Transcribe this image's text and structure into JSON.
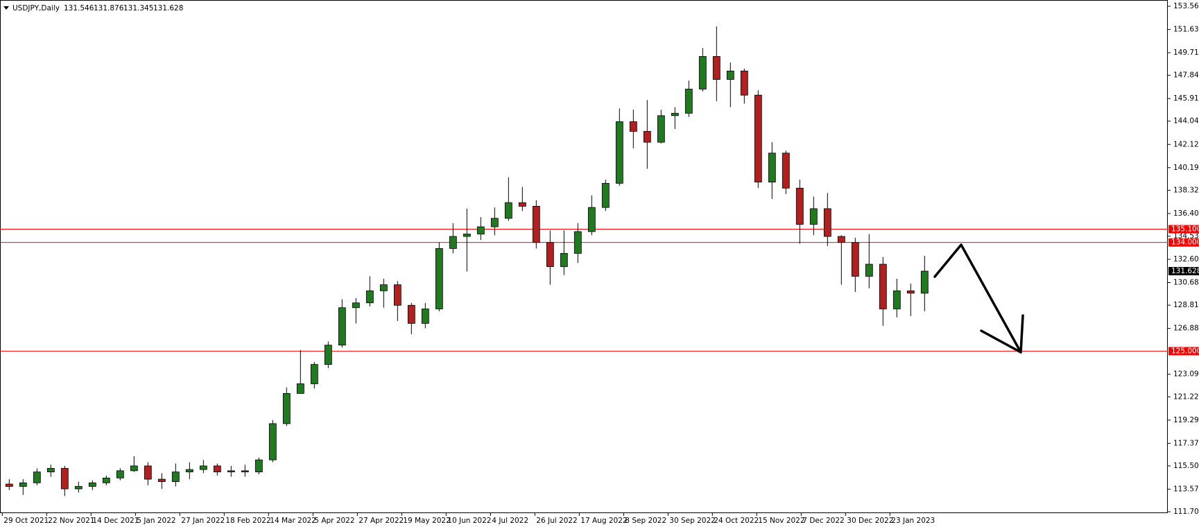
{
  "chart_data": {
    "type": "candlestick",
    "header": {
      "symbol": "USDJPY,Daily",
      "open": 131.546,
      "high": 131.876,
      "low": 131.345,
      "close": 131.628
    },
    "up_color": "#1e7b1e",
    "down_color": "#b41e1e",
    "level_color": "#ff0000",
    "open": [
      114.0,
      113.8,
      114.1,
      115.0,
      115.3,
      113.6,
      113.8,
      114.1,
      114.5,
      115.1,
      115.5,
      114.4,
      114.2,
      115.0,
      115.2,
      115.5,
      115.0,
      115.1,
      115.0,
      116.0,
      119.0,
      121.5,
      122.3,
      123.9,
      125.5,
      128.6,
      129.0,
      130.0,
      130.5,
      128.8,
      127.3,
      128.5,
      133.5,
      134.5,
      134.7,
      135.3,
      136.0,
      137.3,
      137.0,
      134.0,
      132.0,
      133.1,
      134.9,
      136.9,
      138.9,
      144.0,
      143.2,
      142.3,
      144.5,
      144.7,
      146.7,
      149.4,
      147.5,
      148.2,
      146.2,
      139.0,
      141.4,
      138.5,
      135.5,
      136.8,
      134.5,
      134.0,
      131.2,
      132.2,
      128.5,
      130.0,
      129.8
    ],
    "high": [
      114.4,
      114.4,
      115.3,
      115.6,
      115.5,
      114.2,
      114.3,
      114.7,
      115.3,
      116.3,
      115.8,
      114.9,
      115.7,
      115.8,
      116.0,
      115.7,
      115.5,
      115.6,
      116.2,
      119.3,
      122.0,
      125.1,
      124.1,
      125.8,
      129.3,
      129.4,
      131.2,
      131.0,
      130.8,
      129.0,
      129.0,
      134.0,
      135.6,
      136.8,
      136.1,
      136.9,
      139.4,
      138.6,
      137.5,
      135.0,
      135.0,
      135.6,
      137.9,
      139.2,
      145.1,
      145.0,
      145.8,
      145.0,
      145.2,
      147.4,
      150.1,
      151.9,
      148.9,
      148.4,
      146.6,
      142.3,
      141.6,
      139.2,
      137.8,
      138.1,
      134.6,
      134.4,
      134.7,
      132.8,
      131.0,
      130.6,
      132.9
    ],
    "low": [
      113.5,
      113.1,
      113.9,
      114.6,
      113.0,
      113.3,
      113.5,
      113.9,
      114.3,
      115.0,
      113.9,
      113.6,
      113.8,
      114.4,
      114.9,
      114.7,
      114.6,
      114.6,
      114.8,
      115.8,
      118.8,
      121.5,
      121.9,
      123.6,
      125.3,
      127.3,
      128.7,
      128.6,
      127.5,
      126.4,
      126.9,
      128.3,
      133.1,
      131.6,
      134.2,
      134.6,
      135.8,
      136.6,
      133.5,
      130.5,
      131.3,
      132.3,
      134.6,
      136.6,
      138.7,
      141.8,
      140.1,
      142.2,
      143.4,
      144.4,
      146.5,
      145.7,
      145.2,
      145.5,
      138.5,
      137.6,
      138.0,
      133.9,
      134.6,
      133.7,
      130.5,
      129.9,
      130.2,
      127.1,
      127.8,
      127.9,
      128.3
    ],
    "close": [
      113.8,
      114.1,
      115.0,
      115.3,
      113.6,
      113.8,
      114.1,
      114.5,
      115.1,
      115.5,
      114.4,
      114.2,
      115.0,
      115.2,
      115.5,
      115.0,
      115.1,
      115.0,
      116.0,
      119.0,
      121.5,
      122.3,
      123.9,
      125.5,
      128.6,
      129.0,
      130.0,
      130.5,
      128.8,
      127.3,
      128.5,
      133.5,
      134.5,
      134.7,
      135.3,
      136.0,
      137.3,
      137.0,
      134.0,
      132.0,
      133.1,
      134.9,
      136.9,
      138.9,
      144.0,
      143.2,
      142.3,
      144.5,
      144.7,
      146.7,
      149.4,
      147.5,
      148.2,
      146.2,
      139.0,
      141.4,
      138.5,
      135.5,
      136.8,
      134.5,
      134.0,
      131.2,
      132.2,
      128.5,
      130.0,
      129.8,
      131.628
    ],
    "ylim": [
      111.705,
      153.56
    ],
    "yticks": [
      {
        "value": 153.56,
        "label": "153.560"
      },
      {
        "value": 151.635,
        "label": "151.635"
      },
      {
        "value": 149.71,
        "label": "149.710"
      },
      {
        "value": 147.84,
        "label": "147.840"
      },
      {
        "value": 145.915,
        "label": "145.915"
      },
      {
        "value": 144.045,
        "label": "144.045"
      },
      {
        "value": 142.12,
        "label": "142.120"
      },
      {
        "value": 140.195,
        "label": "140.195"
      },
      {
        "value": 138.325,
        "label": "138.325"
      },
      {
        "value": 136.4,
        "label": "136.400"
      },
      {
        "value": 134.53,
        "label": "134.530"
      },
      {
        "value": 132.605,
        "label": "132.605"
      },
      {
        "value": 130.68,
        "label": "130.680"
      },
      {
        "value": 128.81,
        "label": "128.810"
      },
      {
        "value": 126.885,
        "label": "126.885"
      },
      {
        "value": 123.09,
        "label": "123.090"
      },
      {
        "value": 121.22,
        "label": "121.220"
      },
      {
        "value": 119.295,
        "label": "119.295"
      },
      {
        "value": 117.37,
        "label": "117.370"
      },
      {
        "value": 115.5,
        "label": "115.500"
      },
      {
        "value": 113.575,
        "label": "113.575"
      },
      {
        "value": 111.705,
        "label": "111.705"
      }
    ],
    "levels": [
      {
        "value": 135.1,
        "label": "135.100"
      },
      {
        "value": 134.0,
        "label": "134.000"
      },
      {
        "value": 125.0,
        "label": "125.000"
      }
    ],
    "last_price": {
      "value": 131.628,
      "label": "131.628"
    },
    "xticks": [
      "29 Oct 2021",
      "22 Nov 2021",
      "14 Dec 2021",
      "5 Jan 2022",
      "27 Jan 2022",
      "18 Feb 2022",
      "14 Mar 2022",
      "5 Apr 2022",
      "27 Apr 2022",
      "19 May 2022",
      "10 Jun 2022",
      "4 Jul 2022",
      "26 Jul 2022",
      "17 Aug 2022",
      "8 Sep 2022",
      "30 Sep 2022",
      "24 Oct 2022",
      "15 Nov 2022",
      "7 Dec 2022",
      "30 Dec 2022",
      "23 Jan 2023"
    ]
  }
}
